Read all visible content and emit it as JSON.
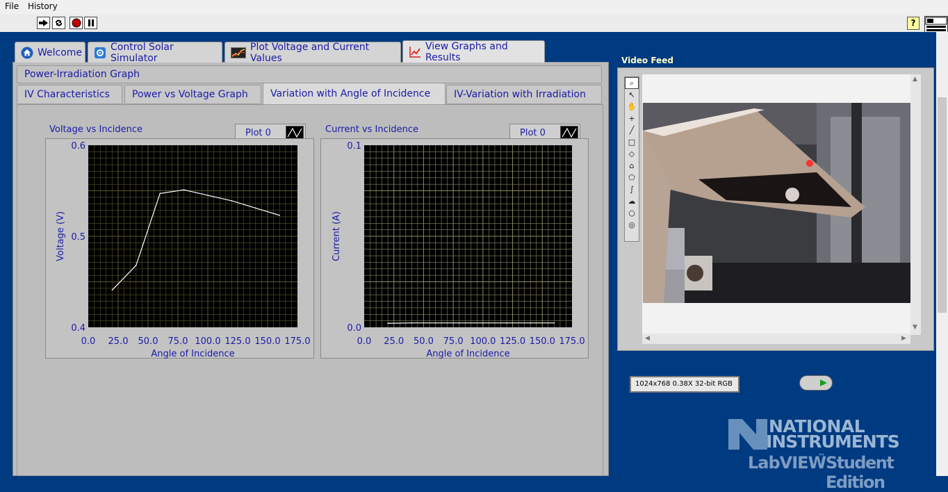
{
  "menu": {
    "file": "File",
    "history": "History"
  },
  "toolbar": {
    "run_icon": "run-arrow-icon",
    "run_continuous_icon": "run-continuously-icon",
    "abort_icon": "abort-stop-icon",
    "pause_icon": "pause-icon",
    "help_label": "?"
  },
  "main_tabs": [
    {
      "label": "Welcome",
      "icon": "home-icon"
    },
    {
      "label": "Control Solar Simulator",
      "icon": "gear-icon"
    },
    {
      "label": "Plot Voltage and Current Values",
      "icon": "chart-icon"
    },
    {
      "label": "View Graphs and Results",
      "icon": "line-chart-icon"
    }
  ],
  "active_main_tab": "View Graphs and Results",
  "sub_tabs": {
    "row1": [
      "Power-Irradiation Graph"
    ],
    "row2": [
      "IV Characteristics",
      "Power vs Voltage Graph",
      "Variation with Angle of Incidence",
      "IV-Variation with Irradiation"
    ]
  },
  "active_sub_tab": "Variation with Angle of Incidence",
  "graphs": {
    "voltage": {
      "title": "Voltage vs Incidence",
      "legend": "Plot 0"
    },
    "current": {
      "title": "Current vs Incidence",
      "legend": "Plot 0"
    }
  },
  "chart_data": [
    {
      "type": "line",
      "title": "Voltage vs Incidence",
      "xlabel": "Angle of Incidence",
      "ylabel": "Voltage (V)",
      "xlim": [
        0,
        175
      ],
      "ylim": [
        0.4,
        0.6
      ],
      "xticks": [
        "0.0",
        "25.0",
        "50.0",
        "75.0",
        "100.0",
        "125.0",
        "150.0",
        "175.0"
      ],
      "yticks": [
        "0.4",
        "0.5",
        "0.6"
      ],
      "grid": true,
      "legend": [
        "Plot 0"
      ],
      "series": [
        {
          "name": "Plot 0",
          "x": [
            20,
            40,
            60,
            80,
            100,
            120,
            140,
            160
          ],
          "y": [
            0.441,
            0.468,
            0.547,
            0.551,
            0.545,
            0.539,
            0.531,
            0.523
          ]
        }
      ]
    },
    {
      "type": "line",
      "title": "Current vs Incidence",
      "xlabel": "Angle of Incidence",
      "ylabel": "Current (A)",
      "xlim": [
        0,
        175
      ],
      "ylim": [
        0.0,
        0.1
      ],
      "xticks": [
        "0.0",
        "25.0",
        "50.0",
        "75.0",
        "100.0",
        "125.0",
        "150.0",
        "175.0"
      ],
      "yticks": [
        "0.0",
        "0.1"
      ],
      "grid": true,
      "legend": [
        "Plot 0"
      ],
      "series": [
        {
          "name": "Plot 0",
          "x": [
            20,
            40,
            60,
            80,
            100,
            120,
            140,
            160
          ],
          "y": [
            0.0022,
            0.0024,
            0.0024,
            0.0024,
            0.0024,
            0.0024,
            0.0024,
            0.0024
          ]
        }
      ]
    }
  ],
  "video": {
    "title": "Video Feed",
    "image_info": "1024x768 0.38X 32-bit RGB",
    "palette_tools": [
      "zoom-tool-icon",
      "pointer-tool-icon",
      "pan-tool-icon",
      "point-tool-icon",
      "line-tool-icon",
      "rectangle-tool-icon",
      "rotated-rectangle-tool-icon",
      "polyline-tool-icon",
      "polygon-tool-icon",
      "freehand-tool-icon",
      "freehand-region-tool-icon",
      "oval-tool-icon",
      "annulus-tool-icon"
    ]
  },
  "branding": {
    "line1": "NATIONAL",
    "line2": "INSTRUMENTS",
    "line3": "LabVIEW",
    "tm": "™",
    "line4": "Student Edition"
  },
  "colors": {
    "label_blue": "#1a1aa8",
    "panel_bg": "#003a80",
    "plot_bg": "#000000",
    "grid_voltage": "#58582c",
    "grid_current": "#8a8a66",
    "trace": "#ffffff"
  }
}
